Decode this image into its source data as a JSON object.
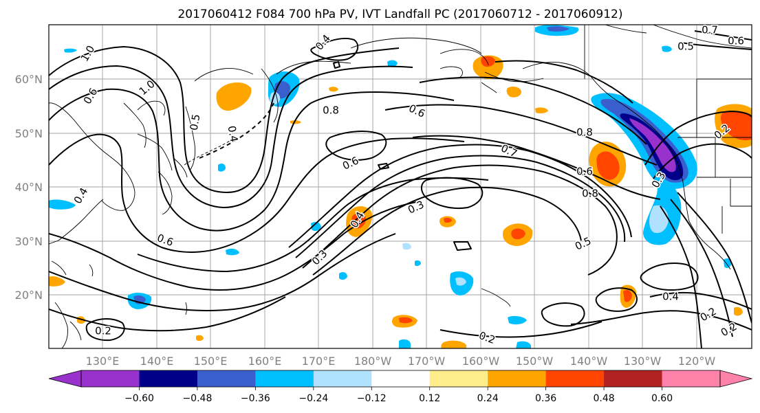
{
  "title": "2017060412 F084 700 hPa PV, IVT Landfall PC (2017060712 - 2017060912)",
  "lat_labels": [
    "60°N",
    "50°N",
    "40°N",
    "30°N",
    "20°N"
  ],
  "lon_labels": [
    "130°E",
    "140°E",
    "150°E",
    "160°E",
    "170°E",
    "180°W",
    "170°W",
    "160°W",
    "150°W",
    "140°W",
    "130°W",
    "120°W"
  ],
  "colorbar": {
    "ticks": [
      "−0.60",
      "−0.48",
      "−0.36",
      "−0.24",
      "−0.12",
      "0.12",
      "0.24",
      "0.36",
      "0.48",
      "0.60"
    ],
    "colors": [
      "#9932cc",
      "#00008b",
      "#3a5fcd",
      "#00bfff",
      "#b0e2ff",
      "#ffffff",
      "#ffec8b",
      "#ffa500",
      "#ff4500",
      "#b22222",
      "#ff82ab"
    ]
  },
  "contour_labels": [
    {
      "text": "0.4"
    },
    {
      "text": "1.0"
    },
    {
      "text": "0.6"
    },
    {
      "text": "1.0"
    },
    {
      "text": "0.5"
    },
    {
      "text": "0.4"
    },
    {
      "text": "0.8"
    },
    {
      "text": "0.6"
    },
    {
      "text": "0.6"
    },
    {
      "text": "0.7"
    },
    {
      "text": "0.8"
    },
    {
      "text": "0.6"
    },
    {
      "text": "0.8"
    },
    {
      "text": "0.3"
    },
    {
      "text": "0.4"
    },
    {
      "text": "0.3"
    },
    {
      "text": "0.5"
    },
    {
      "text": "0.3"
    },
    {
      "text": "0.4"
    },
    {
      "text": "0.6"
    },
    {
      "text": "0.2"
    },
    {
      "text": "0.2"
    },
    {
      "text": "0.4"
    },
    {
      "text": "0.2"
    },
    {
      "text": "0.2"
    },
    {
      "text": "0.5"
    },
    {
      "text": "0.7"
    },
    {
      "text": "0.6"
    },
    {
      "text": "0.2"
    }
  ]
}
